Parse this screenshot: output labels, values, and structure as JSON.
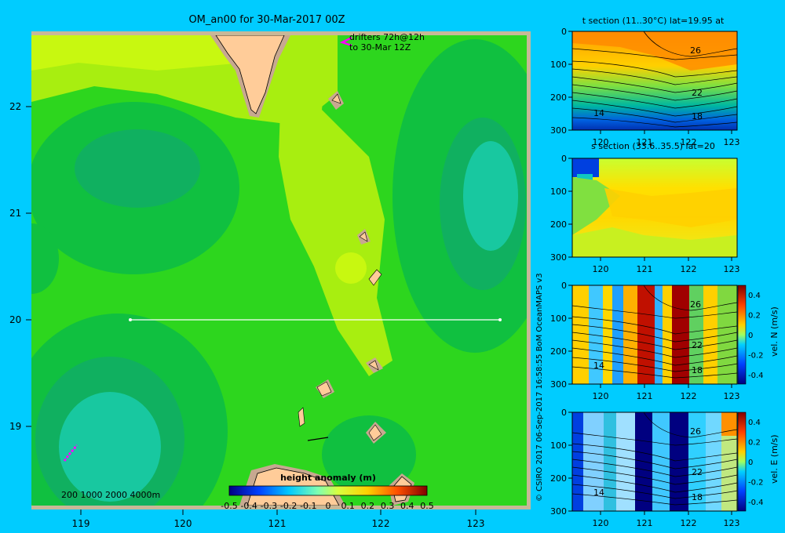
{
  "map": {
    "title": "OM_an00 for 30-Mar-2017 00Z",
    "drifters_line1": "drifters 72h@12h",
    "drifters_line2": "to 30-Mar 12Z",
    "depth_legend": "200  1000  2000  4000m",
    "lat_ticks": [
      "22",
      "21",
      "20",
      "19"
    ],
    "lon_ticks": [
      "119",
      "120",
      "121",
      "122",
      "123"
    ]
  },
  "colorbar": {
    "label": "height anomaly  (m)",
    "ticks": [
      "-0.5",
      "-0.4",
      "-0.3",
      "-0.2",
      "-0.1",
      "0",
      "0.1",
      "0.2",
      "0.3",
      "0.4",
      "0.5"
    ]
  },
  "credit": "© CSIRO 2017   06-Sep-2017 16:58:55 BoM OceanMAPS v3",
  "panels": {
    "t_title": "t section (11..30°C) lat=19.95 at",
    "s_title": "s section (33.6..35.5) lat=20",
    "v_label": "vel. N (m/s)",
    "e_label": "vel. E (m/s)",
    "depth_ticks": [
      "0",
      "100",
      "200",
      "300"
    ],
    "lon_ticks": [
      "120",
      "121",
      "122",
      "123"
    ],
    "contour_labels": [
      "26",
      "22",
      "18",
      "14"
    ],
    "vel_ticks": [
      "0.4",
      "0.2",
      "0",
      "-0.2",
      "-0.4"
    ]
  },
  "colors": {
    "background": "#00ccff",
    "land": "#ffcc99",
    "shelf": "#c8a890",
    "frame": "#c8b898"
  }
}
